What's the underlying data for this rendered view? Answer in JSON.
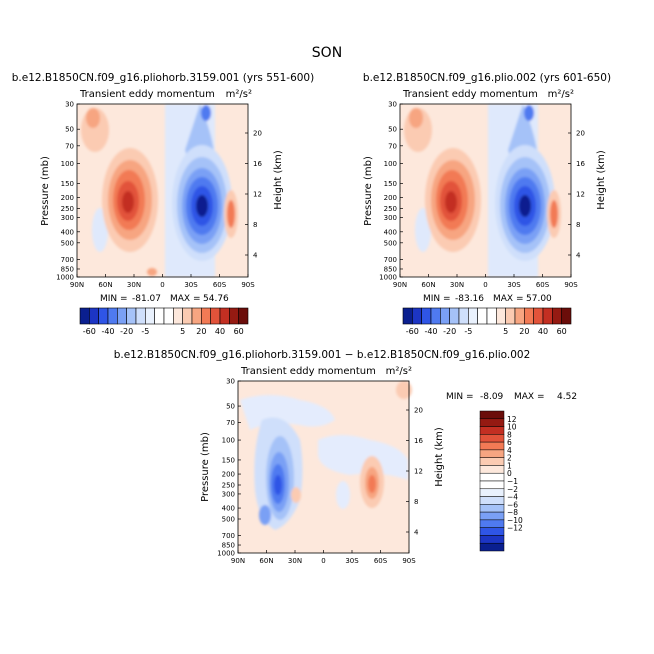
{
  "page_title": "SON",
  "colors": {
    "blues": [
      "#0a1f8f",
      "#1c35c4",
      "#2f55e6",
      "#4f7af0",
      "#7aa0f5",
      "#a5c2f8",
      "#cfdffb",
      "#e9f1fd"
    ],
    "reds": [
      "#fde8dc",
      "#fbcbb2",
      "#f7a581",
      "#f27a55",
      "#e2533a",
      "#c32f22",
      "#951a12",
      "#6b0d0a"
    ],
    "white": "#ffffff"
  },
  "chart_data": [
    {
      "type": "contour",
      "title": "b.e12.B1850CN.f09_g16.pliohorb.3159.001 (yrs 551-600)",
      "subtitle": "Transient eddy momentum",
      "units": "m²/s²",
      "ylabel": "Pressure (mb)",
      "ylabel_right": "Height (km)",
      "x_ticks": [
        "90N",
        "60N",
        "30N",
        "0",
        "30S",
        "60S",
        "90S"
      ],
      "y_ticks": [
        "30",
        "50",
        "70",
        "100",
        "150",
        "200",
        "250",
        "300",
        "400",
        "500",
        "700",
        "850",
        "1000"
      ],
      "right_ticks": [
        "20",
        "16",
        "12",
        "8",
        "4"
      ],
      "stats": {
        "min_label": "MIN =",
        "min": "-81.07",
        "max_label": "MAX =",
        "max": "54.76"
      },
      "features": [
        {
          "name": "positive maximum",
          "lat": "30N",
          "pressure_mb": 250,
          "value": 54.76
        },
        {
          "name": "negative minimum",
          "lat": "30S",
          "pressure_mb": 250,
          "value": -81.07
        },
        {
          "name": "secondary positive",
          "lat": "60S",
          "pressure_mb": 300
        }
      ]
    },
    {
      "type": "contour",
      "title": "b.e12.B1850CN.f09_g16.plio.002 (yrs 601-650)",
      "subtitle": "Transient eddy momentum",
      "units": "m²/s²",
      "ylabel": "Pressure (mb)",
      "ylabel_right": "Height (km)",
      "x_ticks": [
        "90N",
        "60N",
        "30N",
        "0",
        "30S",
        "60S",
        "90S"
      ],
      "y_ticks": [
        "30",
        "50",
        "70",
        "100",
        "150",
        "200",
        "250",
        "300",
        "400",
        "500",
        "700",
        "850",
        "1000"
      ],
      "right_ticks": [
        "20",
        "16",
        "12",
        "8",
        "4"
      ],
      "stats": {
        "min_label": "MIN =",
        "min": "-83.16",
        "max_label": "MAX =",
        "max": "57.00"
      },
      "features": [
        {
          "name": "positive maximum",
          "lat": "30N",
          "pressure_mb": 250,
          "value": 57.0
        },
        {
          "name": "negative minimum",
          "lat": "30S",
          "pressure_mb": 250,
          "value": -83.16
        },
        {
          "name": "secondary positive",
          "lat": "60S",
          "pressure_mb": 300
        }
      ]
    },
    {
      "type": "contour",
      "title": "b.e12.B1850CN.f09_g16.pliohorb.3159.001 − b.e12.B1850CN.f09_g16.plio.002",
      "subtitle": "Transient eddy momentum",
      "units": "m²/s²",
      "ylabel": "Pressure (mb)",
      "ylabel_right": "Height (km)",
      "x_ticks": [
        "90N",
        "60N",
        "30N",
        "0",
        "30S",
        "60S",
        "90S"
      ],
      "y_ticks": [
        "30",
        "50",
        "70",
        "100",
        "150",
        "200",
        "250",
        "300",
        "400",
        "500",
        "700",
        "850",
        "1000"
      ],
      "right_ticks": [
        "20",
        "16",
        "12",
        "8",
        "4"
      ],
      "stats": {
        "min_label": "MIN =",
        "min": "-8.09",
        "max_label": "MAX =",
        "max": "4.52"
      },
      "features": [
        {
          "name": "negative minimum",
          "lat": "55N",
          "pressure_mb": 250,
          "value": -8.09
        },
        {
          "name": "positive maximum",
          "lat": "45S",
          "pressure_mb": 250,
          "value": 4.52
        }
      ]
    }
  ],
  "colorbar_top": {
    "labels": [
      "-60",
      "-40",
      "-20",
      "-5",
      "5",
      "20",
      "40",
      "60"
    ]
  },
  "colorbar_diff": {
    "labels": [
      "12",
      "10",
      "8",
      "6",
      "4",
      "2",
      "1",
      "0",
      "−1",
      "−2",
      "−4",
      "−6",
      "−8",
      "−10",
      "−12"
    ]
  }
}
